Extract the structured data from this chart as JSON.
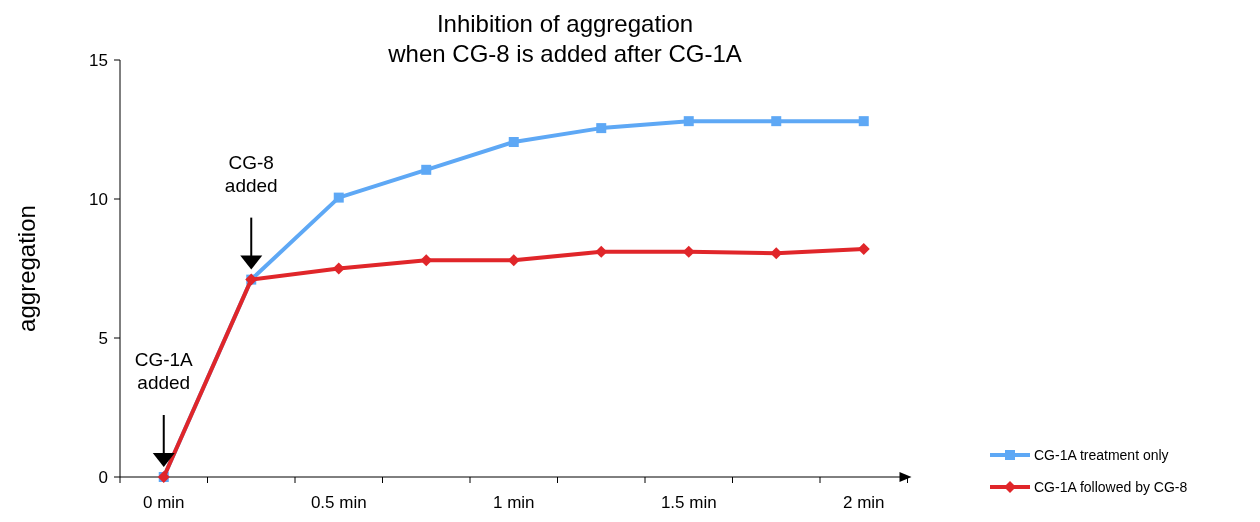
{
  "chart_data": {
    "type": "line",
    "title": "Inhibition of aggregation\nwhen CG-8 is added after CG-1A",
    "ylabel": "aggregation",
    "categories": [
      "0 min",
      null,
      "0.5 min",
      null,
      "1 min",
      null,
      "1.5 min",
      null,
      "2 min"
    ],
    "series": [
      {
        "name": "CG-1A treatment only",
        "color": "#5ea8f5",
        "marker": "square",
        "values": [
          0,
          7.1,
          10.05,
          11.05,
          12.05,
          12.55,
          12.8,
          12.8,
          12.8
        ]
      },
      {
        "name": "CG-1A followed by CG-8",
        "color": "#e0262a",
        "marker": "diamond",
        "values": [
          0,
          7.1,
          7.5,
          7.8,
          7.8,
          8.1,
          8.1,
          8.05,
          8.2
        ]
      }
    ],
    "ylim": [
      0,
      15
    ],
    "yticks": [
      0,
      5,
      10,
      15
    ],
    "grid": false,
    "legend": "bottom right",
    "annotations": [
      "CG-1A\nadded",
      "CG-8\nadded"
    ]
  }
}
